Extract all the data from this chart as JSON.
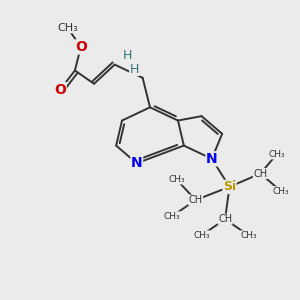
{
  "bg_color": "#ebebeb",
  "atom_colors": {
    "O": "#cc0000",
    "N": "#0000ee",
    "Si": "#bb9900",
    "C": "#333333",
    "H": "#337777"
  },
  "bond_color": "#333333",
  "bond_width": 1.4,
  "figsize": [
    3.0,
    3.0
  ],
  "dpi": 100,
  "xlim": [
    0,
    10
  ],
  "ylim": [
    0,
    10
  ]
}
